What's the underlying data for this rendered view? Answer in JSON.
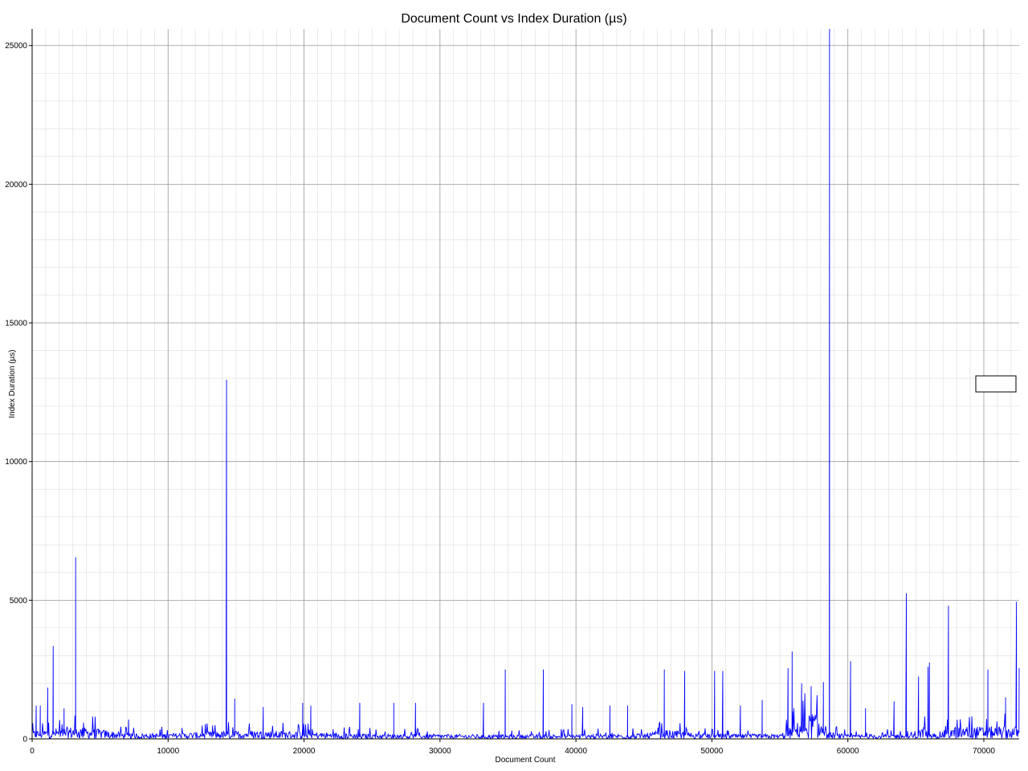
{
  "chart_data": {
    "type": "line",
    "title": "Document Count vs Index Duration (µs)",
    "xlabel": "Document Count",
    "ylabel": "Index Duration (µs)",
    "xlim": [
      0,
      72600
    ],
    "ylim": [
      0,
      25600
    ],
    "x_ticks": [
      0,
      10000,
      20000,
      30000,
      40000,
      50000,
      60000,
      70000
    ],
    "y_ticks": [
      0,
      5000,
      10000,
      15000,
      20000,
      25000
    ],
    "grid": true,
    "minor_grid": true,
    "legend": "right",
    "series_color": "#0000ff",
    "baseline": {
      "typical_values": [
        [
          0,
          300
        ],
        [
          3000,
          450
        ],
        [
          5000,
          350
        ],
        [
          7000,
          200
        ],
        [
          10000,
          200
        ],
        [
          13000,
          260
        ],
        [
          16000,
          320
        ],
        [
          20000,
          260
        ],
        [
          25000,
          180
        ],
        [
          30000,
          170
        ],
        [
          35000,
          150
        ],
        [
          40000,
          170
        ],
        [
          45000,
          190
        ],
        [
          46500,
          330
        ],
        [
          50000,
          180
        ],
        [
          55000,
          170
        ],
        [
          57500,
          1000
        ],
        [
          58500,
          250
        ],
        [
          60000,
          150
        ],
        [
          63000,
          180
        ],
        [
          65000,
          160
        ],
        [
          65500,
          500
        ],
        [
          66000,
          160
        ],
        [
          68000,
          450
        ],
        [
          72600,
          450
        ]
      ]
    },
    "peaks": [
      {
        "x": 300,
        "y": 1200
      },
      {
        "x": 600,
        "y": 1200
      },
      {
        "x": 1150,
        "y": 1850
      },
      {
        "x": 1550,
        "y": 3350
      },
      {
        "x": 2350,
        "y": 1100
      },
      {
        "x": 3200,
        "y": 6550
      },
      {
        "x": 7100,
        "y": 700
      },
      {
        "x": 14300,
        "y": 12950
      },
      {
        "x": 14900,
        "y": 1450
      },
      {
        "x": 17000,
        "y": 1150
      },
      {
        "x": 19900,
        "y": 1300
      },
      {
        "x": 20500,
        "y": 1200
      },
      {
        "x": 24100,
        "y": 1300
      },
      {
        "x": 26600,
        "y": 1300
      },
      {
        "x": 28200,
        "y": 1300
      },
      {
        "x": 33200,
        "y": 1300
      },
      {
        "x": 34800,
        "y": 2500
      },
      {
        "x": 37600,
        "y": 2500
      },
      {
        "x": 39700,
        "y": 1250
      },
      {
        "x": 40500,
        "y": 1150
      },
      {
        "x": 42500,
        "y": 1200
      },
      {
        "x": 43800,
        "y": 1200
      },
      {
        "x": 46500,
        "y": 2500
      },
      {
        "x": 48000,
        "y": 2450
      },
      {
        "x": 50200,
        "y": 2450
      },
      {
        "x": 50800,
        "y": 2450
      },
      {
        "x": 52100,
        "y": 1200
      },
      {
        "x": 53700,
        "y": 1400
      },
      {
        "x": 55600,
        "y": 2550
      },
      {
        "x": 55900,
        "y": 3150
      },
      {
        "x": 56600,
        "y": 2000
      },
      {
        "x": 57300,
        "y": 1900
      },
      {
        "x": 58200,
        "y": 2050
      },
      {
        "x": 58650,
        "y": 25600
      },
      {
        "x": 60200,
        "y": 2800
      },
      {
        "x": 61300,
        "y": 1100
      },
      {
        "x": 63400,
        "y": 1350
      },
      {
        "x": 64300,
        "y": 5250
      },
      {
        "x": 65200,
        "y": 2250
      },
      {
        "x": 65900,
        "y": 2600
      },
      {
        "x": 66000,
        "y": 2750
      },
      {
        "x": 67400,
        "y": 4800
      },
      {
        "x": 70300,
        "y": 2500
      },
      {
        "x": 71600,
        "y": 1500
      },
      {
        "x": 72400,
        "y": 4950
      },
      {
        "x": 72600,
        "y": 2550
      }
    ]
  }
}
